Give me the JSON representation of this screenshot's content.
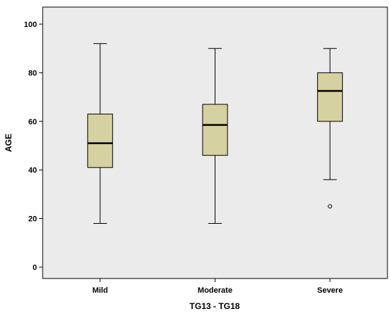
{
  "colors": {
    "plot_background": "#ebebeb",
    "box_fill": "#d6d1a0",
    "stroke": "#000000",
    "page_background": "#ffffff"
  },
  "chart_data": {
    "type": "boxplot",
    "xlabel": "TG13 - TG18",
    "ylabel": "AGE",
    "ylim": [
      0,
      100
    ],
    "yticks": [
      0,
      20,
      40,
      60,
      80,
      100
    ],
    "grid": false,
    "categories": [
      "Mild",
      "Moderate",
      "Severe"
    ],
    "boxes": [
      {
        "category": "Mild",
        "min": 18,
        "q1": 41,
        "median": 51,
        "q3": 63,
        "max": 92,
        "outliers": []
      },
      {
        "category": "Moderate",
        "min": 18,
        "q1": 46,
        "median": 58.5,
        "q3": 67,
        "max": 90,
        "outliers": []
      },
      {
        "category": "Severe",
        "min": 36,
        "q1": 60,
        "median": 72.5,
        "q3": 80,
        "max": 90,
        "outliers": [
          25
        ]
      }
    ]
  }
}
